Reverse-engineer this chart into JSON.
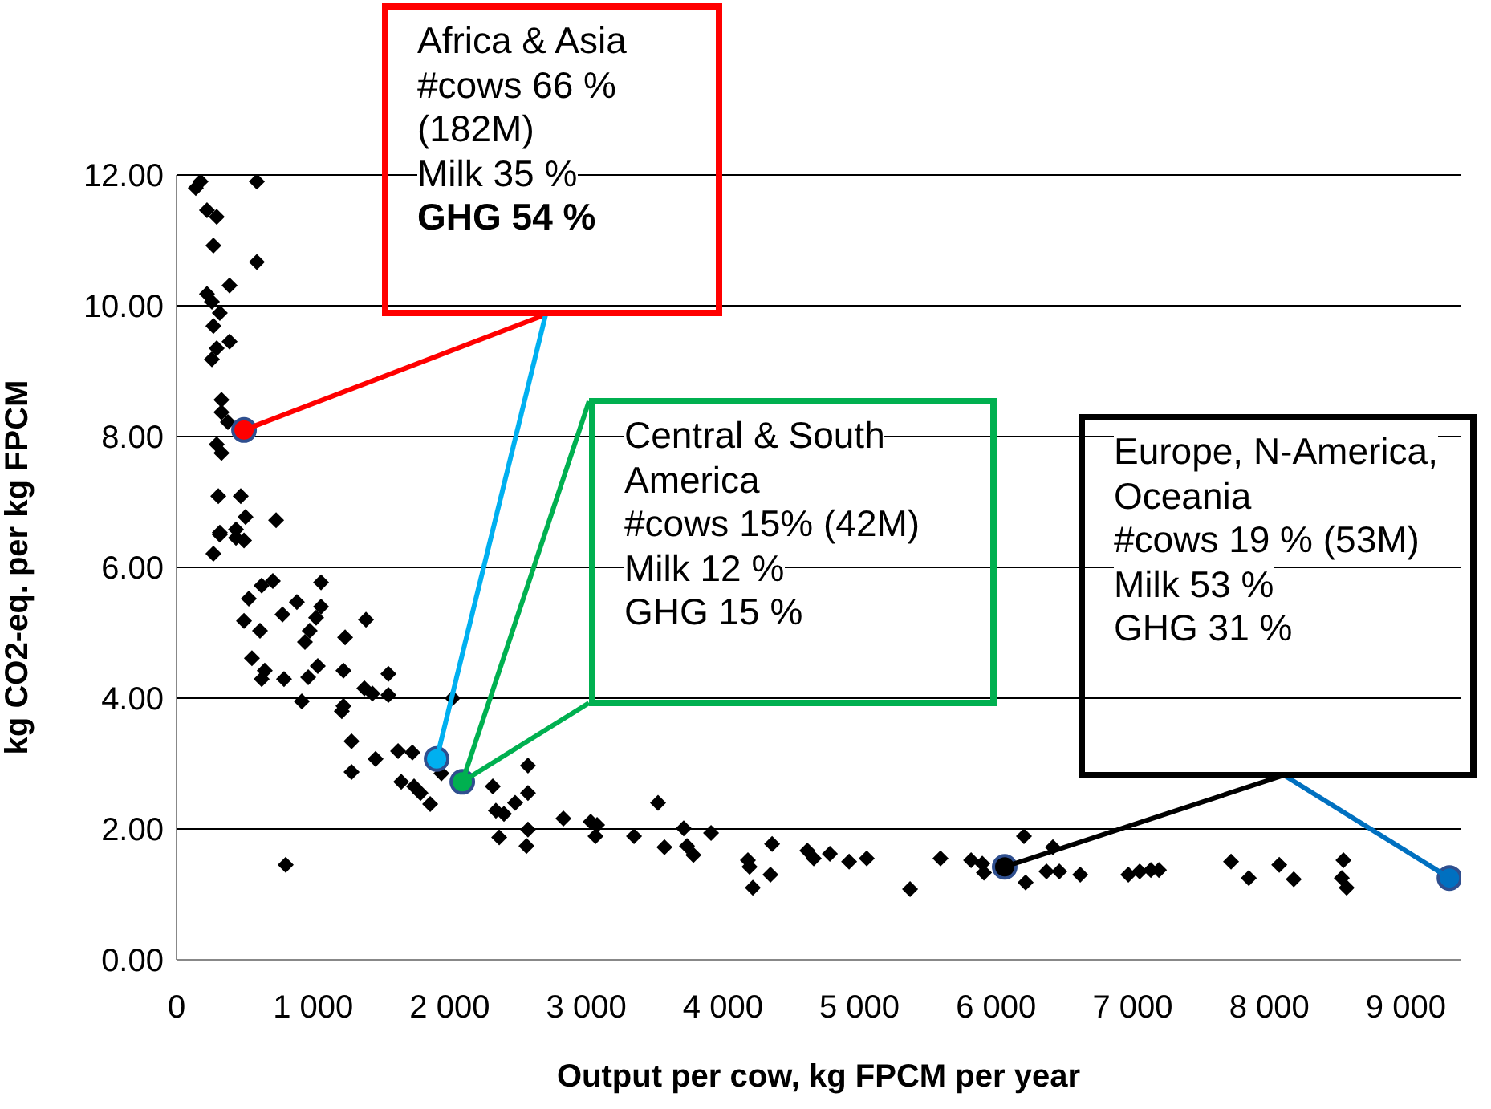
{
  "chart_data": {
    "type": "scatter",
    "xlabel": "Output per cow, kg FPCM per year",
    "ylabel": "kg CO2-eq. per kg FPCM",
    "xlim": [
      0,
      9400
    ],
    "xticks": [
      {
        "value": 0,
        "label": "0"
      },
      {
        "value": 1000,
        "label": "1 000"
      },
      {
        "value": 2000,
        "label": "2 000"
      },
      {
        "value": 3000,
        "label": "3 000"
      },
      {
        "value": 4000,
        "label": "4 000"
      },
      {
        "value": 5000,
        "label": "5 000"
      },
      {
        "value": 6000,
        "label": "6 000"
      },
      {
        "value": 7000,
        "label": "7 000"
      },
      {
        "value": 8000,
        "label": "8 000"
      },
      {
        "value": 9000,
        "label": "9 000"
      }
    ],
    "ylim": [
      0,
      12
    ],
    "yticks": [
      {
        "value": 0,
        "label": "0.00"
      },
      {
        "value": 2,
        "label": "2.00"
      },
      {
        "value": 4,
        "label": "4.00"
      },
      {
        "value": 6,
        "label": "6.00"
      },
      {
        "value": 8,
        "label": "8.00"
      },
      {
        "value": 10,
        "label": "10.00"
      },
      {
        "value": 12,
        "label": "12.00"
      }
    ],
    "grid": "y",
    "legend": false,
    "series": [
      {
        "color": "#000000",
        "marker": "diamond",
        "x": [
          176,
          141,
          588,
          223,
          294,
          270,
          588,
          223,
          388,
          259,
          317,
          270,
          388,
          294,
          259,
          329,
          329,
          376,
          294,
          329,
          306,
          470,
          505,
          729,
          435,
          317,
          494,
          270,
          317,
          435,
          705,
          623,
          1058,
          529,
          881,
          1058,
          776,
          494,
          1022,
          1387,
          611,
          975,
          940,
          1234,
          552,
          646,
          623,
          787,
          964,
          1034,
          1222,
          1551,
          1375,
          1434,
          1551,
          917,
          1222,
          1210,
          2021,
          1281,
          1457,
          1281,
          1622,
          1727,
          1939,
          1645,
          1739,
          1786,
          1857,
          2315,
          2573,
          2573,
          2479,
          2338,
          2397,
          2832,
          2573,
          2362,
          2562,
          799,
          3032,
          3079,
          3067,
          3349,
          3525,
          3572,
          3713,
          3737,
          3784,
          3913,
          4183,
          4195,
          4219,
          4360,
          4348,
          4618,
          4665,
          4783,
          4924,
          5053,
          5370,
          5593,
          5817,
          5911,
          5899,
          6204,
          6216,
          6416,
          6369,
          6463,
          6616,
          6968,
          7051,
          7133,
          7192,
          7720,
          7850,
          8073,
          8179,
          8543,
          8531,
          8566
        ],
        "values": [
          11.9,
          11.8,
          11.9,
          11.46,
          11.36,
          10.92,
          10.67,
          10.18,
          10.31,
          10.06,
          9.89,
          9.69,
          9.45,
          9.35,
          9.18,
          8.56,
          8.37,
          8.22,
          7.88,
          7.75,
          7.09,
          7.09,
          6.77,
          6.72,
          6.58,
          6.53,
          6.41,
          6.21,
          6.5,
          6.45,
          5.79,
          5.72,
          5.77,
          5.52,
          5.47,
          5.4,
          5.28,
          5.18,
          5.23,
          5.2,
          5.03,
          5.03,
          4.86,
          4.93,
          4.61,
          4.42,
          4.29,
          4.29,
          4.32,
          4.49,
          4.42,
          4.37,
          4.15,
          4.07,
          4.05,
          3.95,
          3.88,
          3.8,
          4.0,
          3.34,
          3.07,
          2.87,
          3.19,
          3.17,
          2.85,
          2.72,
          2.65,
          2.55,
          2.38,
          2.65,
          2.97,
          2.55,
          2.4,
          2.28,
          2.23,
          2.16,
          1.99,
          1.87,
          1.74,
          1.45,
          2.11,
          2.06,
          1.89,
          1.89,
          2.4,
          1.72,
          2.01,
          1.74,
          1.6,
          1.94,
          1.52,
          1.42,
          1.1,
          1.77,
          1.3,
          1.67,
          1.55,
          1.62,
          1.5,
          1.55,
          1.08,
          1.55,
          1.52,
          1.33,
          1.47,
          1.89,
          1.18,
          1.72,
          1.35,
          1.35,
          1.3,
          1.3,
          1.35,
          1.37,
          1.37,
          1.5,
          1.25,
          1.45,
          1.23,
          1.52,
          1.25,
          1.1
        ]
      },
      {
        "color": "#ff0000",
        "marker": "circle",
        "x": [
          494
        ],
        "values": [
          8.1
        ]
      },
      {
        "color": "#00b0f0",
        "marker": "circle",
        "x": [
          1904
        ],
        "values": [
          3.07
        ]
      },
      {
        "color": "#00b050",
        "marker": "circle",
        "x": [
          2092
        ],
        "values": [
          2.72
        ]
      },
      {
        "color": "#000000",
        "marker": "circle",
        "x": [
          6063
        ],
        "values": [
          1.42
        ]
      },
      {
        "color": "#0070c0",
        "marker": "circle",
        "x": [
          9319
        ],
        "values": [
          1.25
        ]
      }
    ],
    "annotations": [
      "Africa & Asia\n#cows 66 %\n(182M)\nMilk 35 %\nGHG 54 %",
      {
        "text": "Central & South\nAmerica\n#cows 15% (42M)\nMilk 12 %\nGHG 15 %",
        "x": 2092,
        "y": 2.72
      },
      "Europe, N-America,\nOceania\n#cows 19 % (53M)\nMilk 53 %\nGHG 31 %"
    ]
  }
}
